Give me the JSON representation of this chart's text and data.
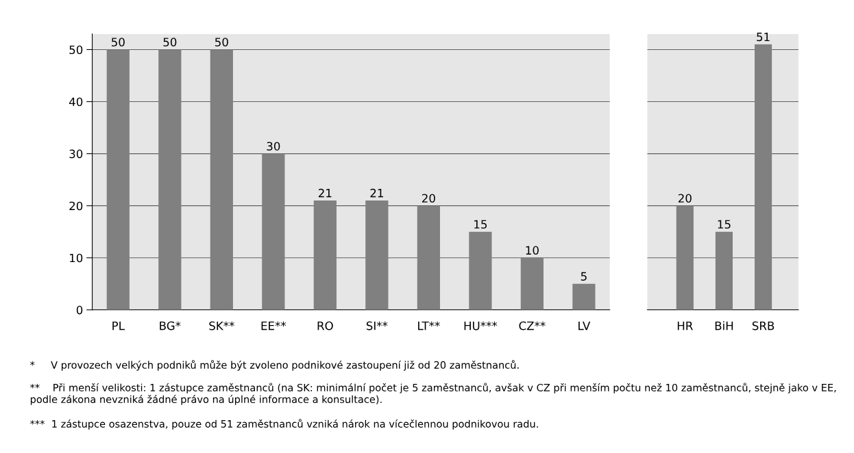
{
  "chart_data": [
    {
      "type": "bar",
      "categories": [
        "PL",
        "BG*",
        "SK**",
        "EE**",
        "RO",
        "SI**",
        "LT**",
        "HU***",
        "CZ**",
        "LV"
      ],
      "values": [
        50,
        50,
        50,
        30,
        21,
        21,
        20,
        15,
        10,
        5
      ],
      "color": "#808080",
      "ylim": [
        0,
        53
      ],
      "yticks": [
        0,
        10,
        20,
        30,
        40,
        50
      ],
      "grid": "y",
      "data_labels": true,
      "annotations": [
        "*     V provozech velkých podniků může být zvoleno podnikové zastoupení již od 20 zaměstnanců.",
        "**    Při menší velikosti: 1 zástupce zaměstnanců (na SK: minimální počet je 5 zaměstnanců, avšak v CZ při menším počtu než 10 zaměstnanců, stejně jako v EE, podle zákona nevzniká žádné právo na úplné informace a konsultace).",
        "***  1 zástupce osazenstva, pouze od 51 zaměstnanců vzniká nárok na vícečlennou podnikovou radu."
      ]
    },
    {
      "type": "bar",
      "categories": [
        "HR",
        "BiH",
        "SRB"
      ],
      "values": [
        20,
        15,
        51
      ],
      "color": "#808080",
      "ylim": [
        0,
        53
      ],
      "yticks": [
        0,
        10,
        20,
        30,
        40,
        50
      ],
      "grid": "y",
      "data_labels": true,
      "tick_labels": "x"
    }
  ]
}
